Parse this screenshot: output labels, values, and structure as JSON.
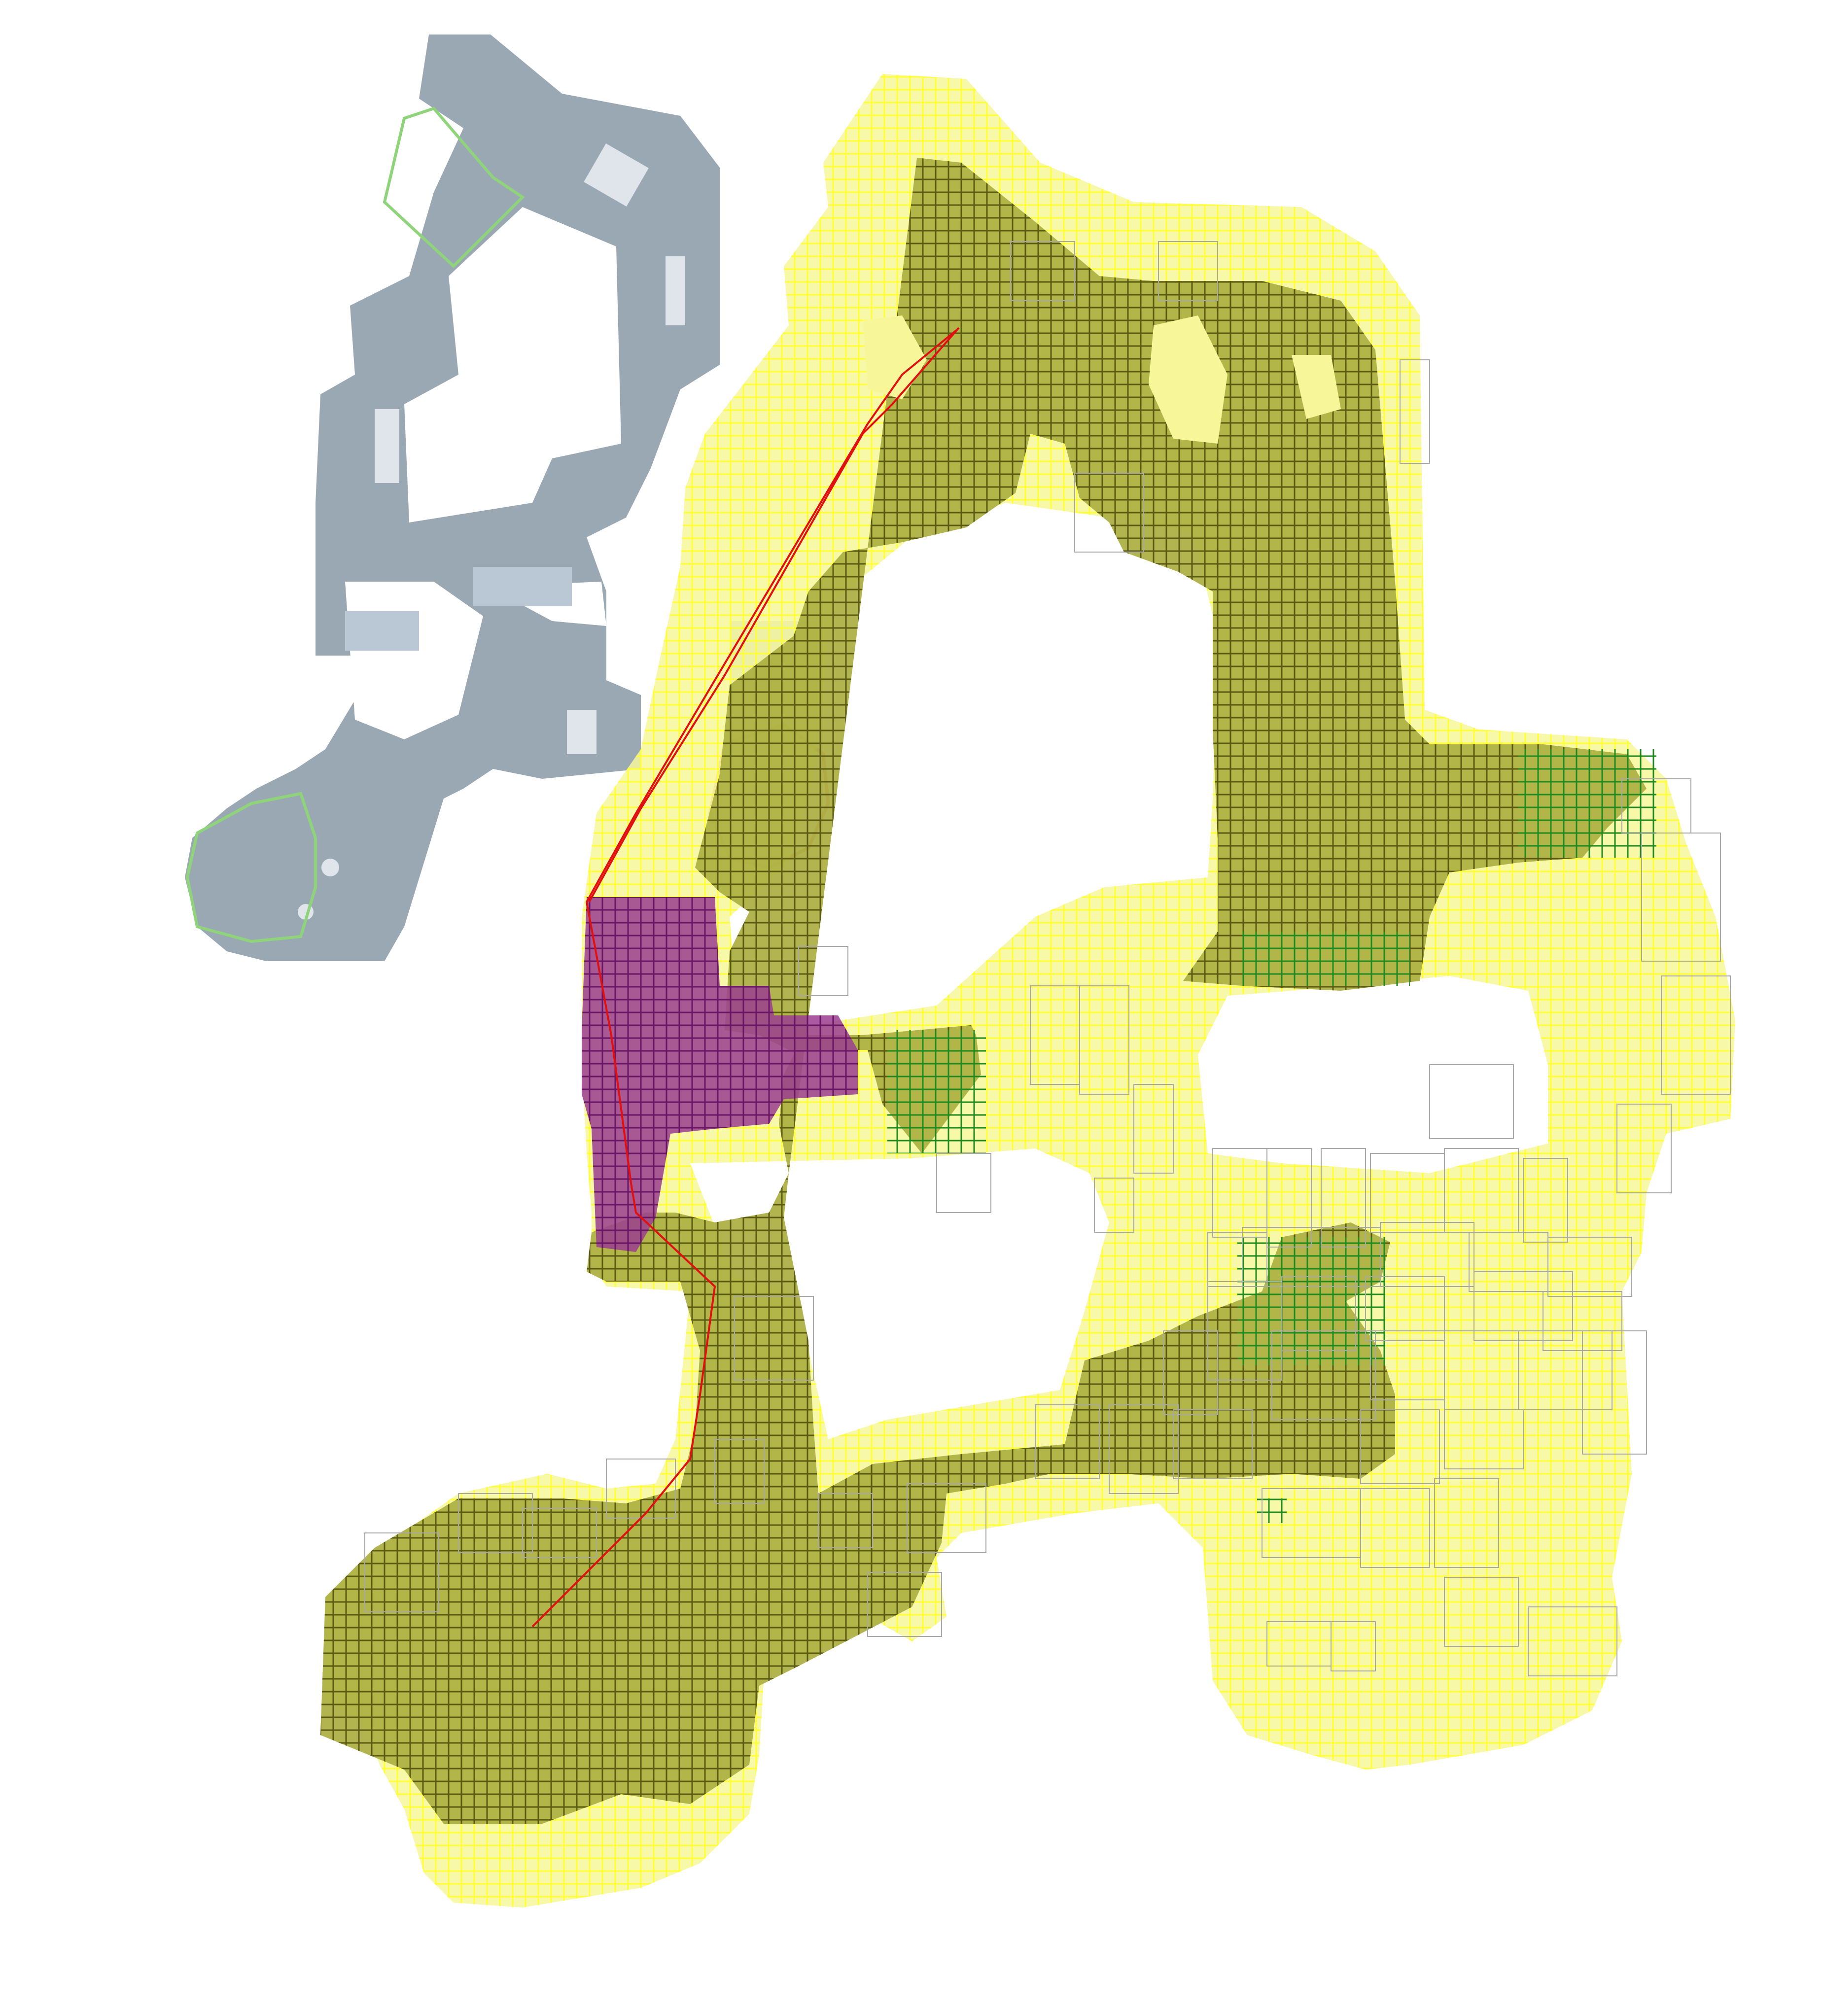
{
  "map": {
    "colors": {
      "background": "#ffffff",
      "base_floor": "#9aa8b3",
      "base_floor_light": "#b9c8d4",
      "base_prop": "#dfe5ea",
      "spawn_outline": "#8fd47a",
      "bomb_ring": "#e89a8c",
      "nav_light_fill": "#f7f79a",
      "nav_light_stroke": "#ffff33",
      "nav_dark_fill": "#aaad3c",
      "nav_dark_stroke": "#5a5a12",
      "nav_purple_fill": "#9a3d8f",
      "nav_purple_stroke": "#6a1566",
      "nav_green_stroke": "#1f8a1f",
      "sector_outline": "#a8a8a8",
      "path_line": "#e01010"
    },
    "icons": [
      "spawn-area",
      "bomb-site",
      "navigation-grid",
      "agent-path"
    ],
    "layers": [
      "base-map",
      "navigation-coverage",
      "visited-cells",
      "highlighted-region",
      "agent-path"
    ]
  }
}
